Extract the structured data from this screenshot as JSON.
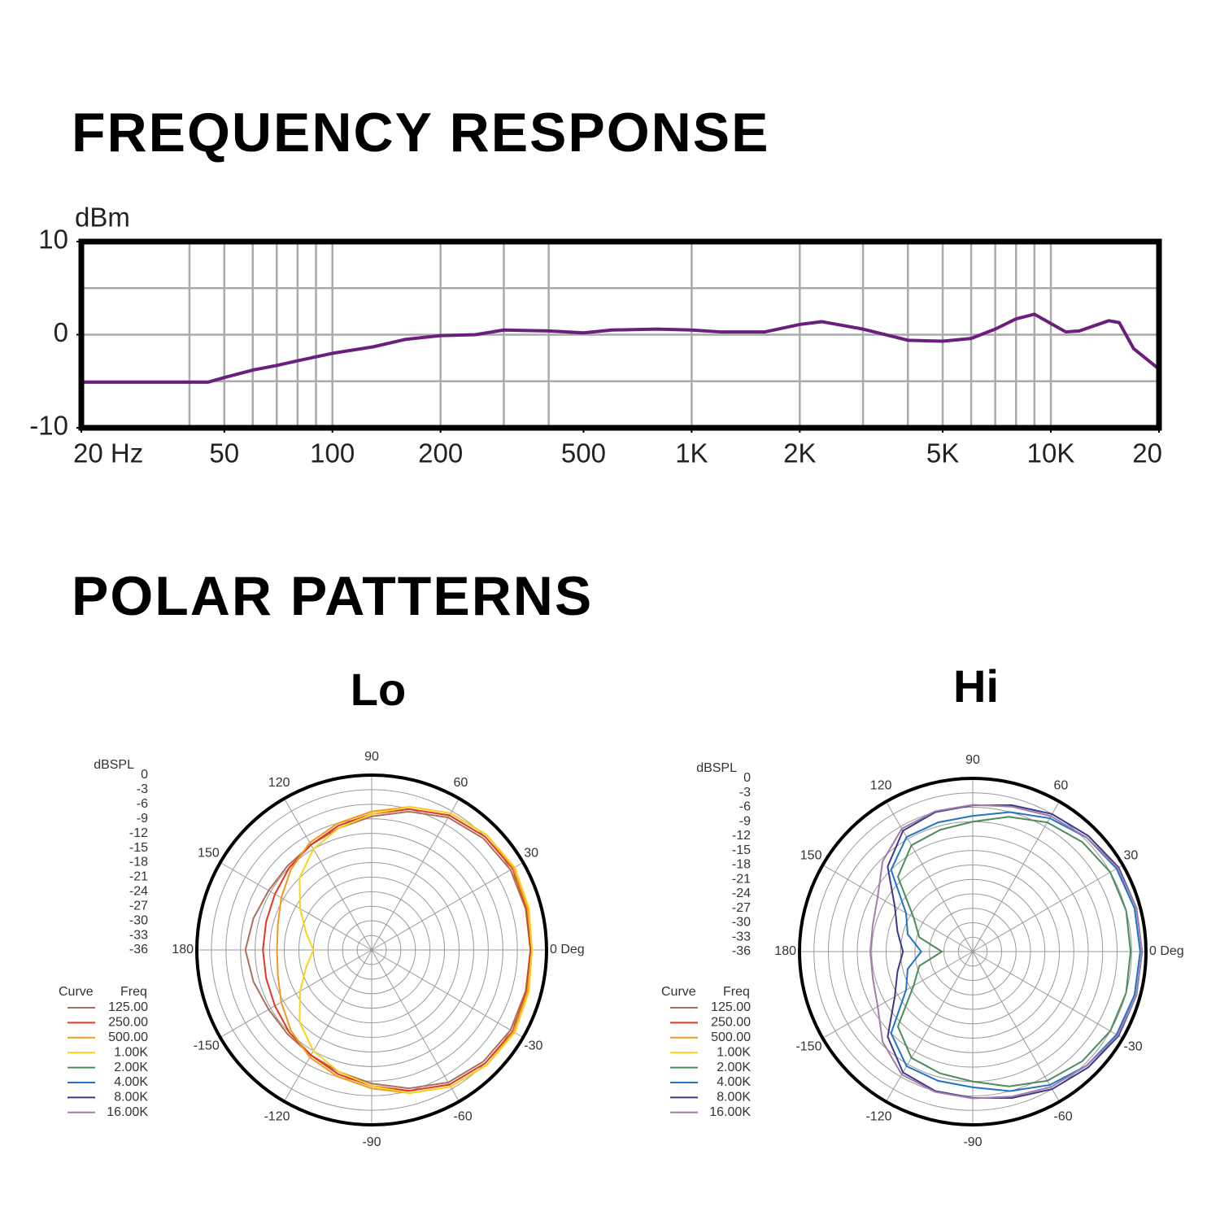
{
  "section_title": "POLAR PATTERNS",
  "chart_data": [
    {
      "type": "line",
      "title": "FREQUENCY RESPONSE",
      "y_label": "dBm",
      "x_scale": "log",
      "xlim": [
        20,
        20000
      ],
      "xticks": [
        {
          "value": 20,
          "label": "20 Hz"
        },
        50,
        100,
        200,
        500,
        {
          "value": 1000,
          "label": "1K"
        },
        {
          "value": 2000,
          "label": "2K"
        },
        {
          "value": 5000,
          "label": "5K"
        },
        {
          "value": 10000,
          "label": "10K"
        },
        {
          "value": 20000,
          "label": "20"
        }
      ],
      "xgrid": [
        40,
        50,
        60,
        70,
        80,
        90,
        100,
        200,
        300,
        400,
        1000,
        2000,
        3000,
        4000,
        5000,
        6000,
        7000,
        8000,
        9000,
        10000
      ],
      "ylim": [
        -10,
        10
      ],
      "yticks": [
        -10,
        0,
        10
      ],
      "ygrid": [
        -5,
        0,
        5
      ],
      "x": [
        20,
        45,
        50,
        60,
        70,
        80,
        100,
        130,
        160,
        200,
        250,
        300,
        400,
        500,
        600,
        800,
        1000,
        1200,
        1600,
        2000,
        2300,
        3000,
        4000,
        5000,
        6000,
        7000,
        8000,
        9000,
        10000,
        11000,
        12000,
        14500,
        15500,
        17000,
        20000
      ],
      "series": [
        {
          "name": "response",
          "color": "#6b1f7c",
          "values": [
            -5.1,
            -5.1,
            -4.6,
            -3.8,
            -3.3,
            -2.8,
            -2.0,
            -1.3,
            -0.5,
            -0.1,
            0,
            0.5,
            0.4,
            0.2,
            0.5,
            0.6,
            0.5,
            0.3,
            0.3,
            1.1,
            1.4,
            0.6,
            -0.6,
            -0.7,
            -0.4,
            0.6,
            1.7,
            2.2,
            1.2,
            0.3,
            0.4,
            1.5,
            1.3,
            -1.5,
            -3.7
          ]
        }
      ]
    },
    {
      "type": "polar",
      "title": "Lo",
      "r_label": "dBSPL",
      "legend_header": [
        "Curve",
        "Freq"
      ],
      "rlim": [
        -36,
        0
      ],
      "rticks": [
        0,
        -3,
        -6,
        -9,
        -12,
        -15,
        -18,
        -21,
        -24,
        -27,
        -30,
        -33,
        -36
      ],
      "thetaticks": [
        {
          "value": 0,
          "label": "0 Deg"
        },
        30,
        60,
        90,
        120,
        150,
        180,
        -150,
        -120,
        -90,
        -60,
        -30
      ],
      "theta": [
        0,
        15,
        30,
        45,
        60,
        75,
        90,
        105,
        120,
        135,
        150,
        165,
        180,
        195,
        210,
        225,
        240,
        255,
        270,
        285,
        300,
        315,
        330,
        345
      ],
      "series": [
        {
          "name": "125.00",
          "color": "#a8735c",
          "values": [
            -3.3,
            -3.2,
            -3,
            -3.5,
            -4.5,
            -6.5,
            -8.5,
            -10,
            -11,
            -11.5,
            -11.5,
            -10.8,
            -10,
            -10.8,
            -11.5,
            -11.5,
            -11,
            -10,
            -8.5,
            -6.5,
            -4.5,
            -3.5,
            -3,
            -3.2
          ]
        },
        {
          "name": "250.00",
          "color": "#e0381e",
          "values": [
            -3.3,
            -3,
            -2.5,
            -3,
            -4,
            -6,
            -8,
            -9.5,
            -11,
            -12,
            -13,
            -13.5,
            -13.6,
            -13.5,
            -13,
            -12,
            -11,
            -9.5,
            -8,
            -6,
            -4,
            -3,
            -2.5,
            -3
          ]
        },
        {
          "name": "500.00",
          "color": "#f39a1c",
          "values": [
            -3,
            -2.8,
            -2.3,
            -2.5,
            -3.5,
            -5.5,
            -7.5,
            -9,
            -10.5,
            -12.5,
            -14.5,
            -16,
            -16.5,
            -16,
            -14.5,
            -12.5,
            -10.5,
            -9,
            -7.5,
            -5.5,
            -3.5,
            -2.5,
            -2.3,
            -2.8
          ]
        },
        {
          "name": "1.00K",
          "color": "#f7d31e",
          "values": [
            -3,
            -2.5,
            -2,
            -2.5,
            -3.5,
            -5.5,
            -8,
            -10,
            -12,
            -15,
            -19,
            -22,
            -24,
            -22,
            -19,
            -15,
            -12,
            -10,
            -8,
            -5.5,
            -3.5,
            -2.5,
            -2,
            -2.5
          ]
        },
        {
          "name": "2.00K",
          "color": "#4d8b5c"
        },
        {
          "name": "4.00K",
          "color": "#1f74c6"
        },
        {
          "name": "8.00K",
          "color": "#3b398c"
        },
        {
          "name": "16.00K",
          "color": "#a47ca9"
        }
      ]
    },
    {
      "type": "polar",
      "title": "Hi",
      "r_label": "dBSPL",
      "legend_header": [
        "Curve",
        "Freq"
      ],
      "rlim": [
        -36,
        0
      ],
      "rticks": [
        0,
        -3,
        -6,
        -9,
        -12,
        -15,
        -18,
        -21,
        -24,
        -27,
        -30,
        -33,
        -36
      ],
      "thetaticks": [
        {
          "value": 0,
          "label": "0 Deg"
        },
        30,
        60,
        90,
        120,
        150,
        180,
        -150,
        -120,
        -90,
        -60,
        -30
      ],
      "theta": [
        0,
        15,
        30,
        45,
        60,
        75,
        90,
        105,
        120,
        135,
        150,
        165,
        180,
        195,
        210,
        225,
        240,
        255,
        270,
        285,
        300,
        315,
        330,
        345
      ],
      "series": [
        {
          "name": "125.00",
          "color": "#a8735c"
        },
        {
          "name": "250.00",
          "color": "#e0381e"
        },
        {
          "name": "500.00",
          "color": "#f39a1c"
        },
        {
          "name": "1.00K",
          "color": "#f7d31e"
        },
        {
          "name": "2.00K",
          "color": "#4d8b5c",
          "values": [
            -3.2,
            -3,
            -3,
            -3.8,
            -5,
            -7,
            -9,
            -9.8,
            -10.5,
            -14,
            -21.8,
            -24.5,
            -29.6,
            -24.5,
            -21.8,
            -14,
            -10.5,
            -9.8,
            -9,
            -7,
            -5,
            -3.8,
            -3,
            -3
          ]
        },
        {
          "name": "4.00K",
          "color": "#1f74c6",
          "values": [
            -1.2,
            -1.2,
            -1.5,
            -2.5,
            -4,
            -6,
            -7.8,
            -8.2,
            -8.5,
            -12,
            -20,
            -22,
            -25.3,
            -22,
            -20,
            -12,
            -8.5,
            -8.2,
            -7.8,
            -6,
            -4,
            -2.5,
            -1.5,
            -1.2
          ]
        },
        {
          "name": "8.00K",
          "color": "#3b398c",
          "values": [
            -0.8,
            -0.8,
            -1,
            -2,
            -3,
            -4.5,
            -5.6,
            -6,
            -7,
            -11,
            -17.3,
            -19.8,
            -21.5,
            -19.8,
            -17.3,
            -11,
            -7,
            -6,
            -5.6,
            -4.5,
            -3,
            -2,
            -1,
            -0.8
          ]
        },
        {
          "name": "16.00K",
          "color": "#a47ca9",
          "values": [
            -0.8,
            -0.8,
            -1.2,
            -2.5,
            -3.5,
            -4.8,
            -5.5,
            -5.8,
            -6.5,
            -9.5,
            -13.2,
            -14.5,
            -14.7,
            -14.5,
            -13.2,
            -9.5,
            -6.5,
            -5.8,
            -5.5,
            -4.8,
            -3.5,
            -2.5,
            -1.2,
            -0.8
          ]
        }
      ]
    }
  ]
}
